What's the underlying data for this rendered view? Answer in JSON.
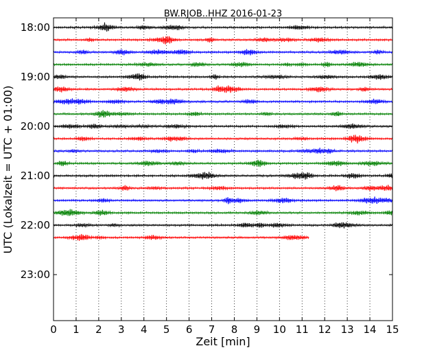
{
  "chart_data": {
    "type": "line",
    "title": "BW.RJOB..HHZ 2016-01-23",
    "xlabel": "Zeit  [min]",
    "ylabel": "UTC (Lokalzeit = UTC + 01:00)",
    "x_ticks": [
      "0",
      "1",
      "2",
      "3",
      "4",
      "5",
      "6",
      "7",
      "8",
      "9",
      "10",
      "11",
      "12",
      "13",
      "14",
      "15"
    ],
    "xlim": [
      0,
      15
    ],
    "y_ticks": [
      "18:00",
      "19:00",
      "20:00",
      "21:00",
      "22:00",
      "23:00"
    ],
    "grid": "vertical dotted at each minute",
    "track_interval_min": 15,
    "colors_cycle": [
      "#000000",
      "#ff0000",
      "#0000ff",
      "#008000"
    ],
    "tracks": [
      {
        "start": "18:00",
        "color": "#000000",
        "end_min": 15
      },
      {
        "start": "18:15",
        "color": "#ff0000",
        "end_min": 15
      },
      {
        "start": "18:30",
        "color": "#0000ff",
        "end_min": 15
      },
      {
        "start": "18:45",
        "color": "#008000",
        "end_min": 15
      },
      {
        "start": "19:00",
        "color": "#000000",
        "end_min": 15
      },
      {
        "start": "19:15",
        "color": "#ff0000",
        "end_min": 15
      },
      {
        "start": "19:30",
        "color": "#0000ff",
        "end_min": 15
      },
      {
        "start": "19:45",
        "color": "#008000",
        "end_min": 15
      },
      {
        "start": "20:00",
        "color": "#000000",
        "end_min": 15
      },
      {
        "start": "20:15",
        "color": "#ff0000",
        "end_min": 15
      },
      {
        "start": "20:30",
        "color": "#0000ff",
        "end_min": 15
      },
      {
        "start": "20:45",
        "color": "#008000",
        "end_min": 15
      },
      {
        "start": "21:00",
        "color": "#000000",
        "end_min": 15
      },
      {
        "start": "21:15",
        "color": "#ff0000",
        "end_min": 15
      },
      {
        "start": "21:30",
        "color": "#0000ff",
        "end_min": 15
      },
      {
        "start": "21:45",
        "color": "#008000",
        "end_min": 15
      },
      {
        "start": "22:00",
        "color": "#000000",
        "end_min": 15
      },
      {
        "start": "22:15",
        "color": "#ff0000",
        "end_min": 11.3
      }
    ]
  }
}
